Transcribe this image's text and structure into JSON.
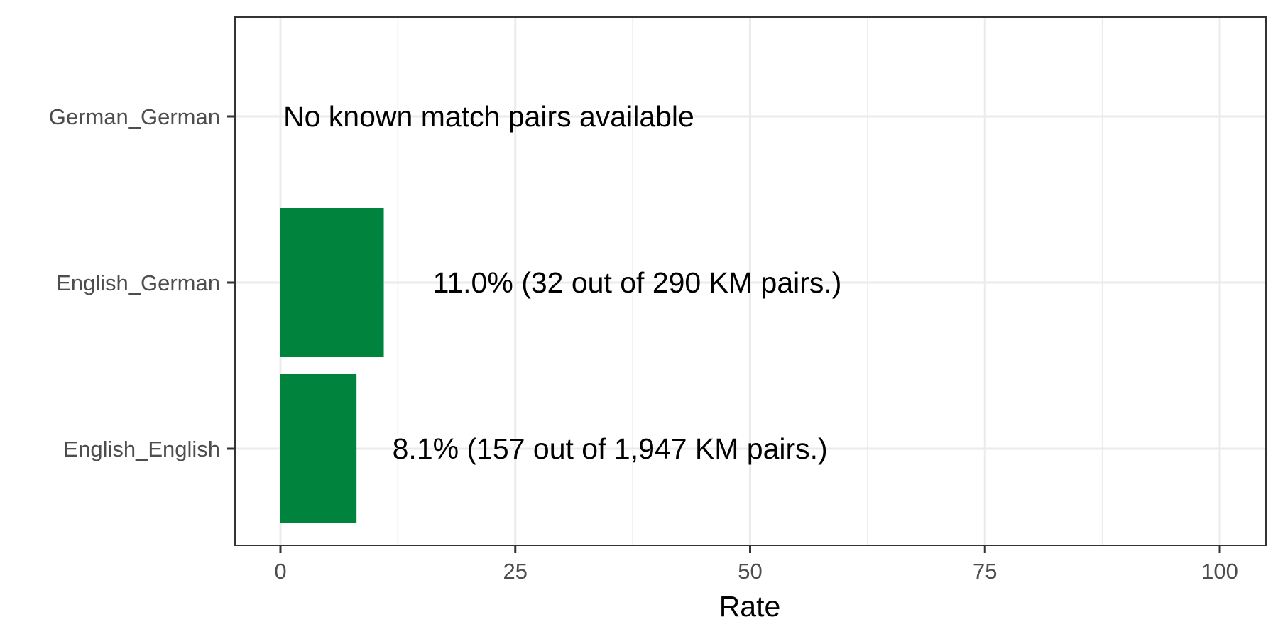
{
  "chart_data": {
    "type": "bar",
    "orientation": "horizontal",
    "title": "",
    "xlabel": "Rate",
    "ylabel": "",
    "xlim": [
      0,
      100
    ],
    "x_ticks": [
      "0",
      "25",
      "50",
      "75",
      "100"
    ],
    "x_tick_values": [
      0,
      25,
      50,
      75,
      100
    ],
    "categories": [
      "English_English",
      "English_German",
      "German_German"
    ],
    "values": [
      8.1,
      11.0,
      null
    ],
    "labels": [
      "8.1% (157 out of 1,947 KM pairs.)",
      "11.0% (32 out of 290 KM pairs.)",
      "No known match pairs available"
    ],
    "bar_color": "#00843D",
    "grid": true,
    "legend": "none"
  }
}
